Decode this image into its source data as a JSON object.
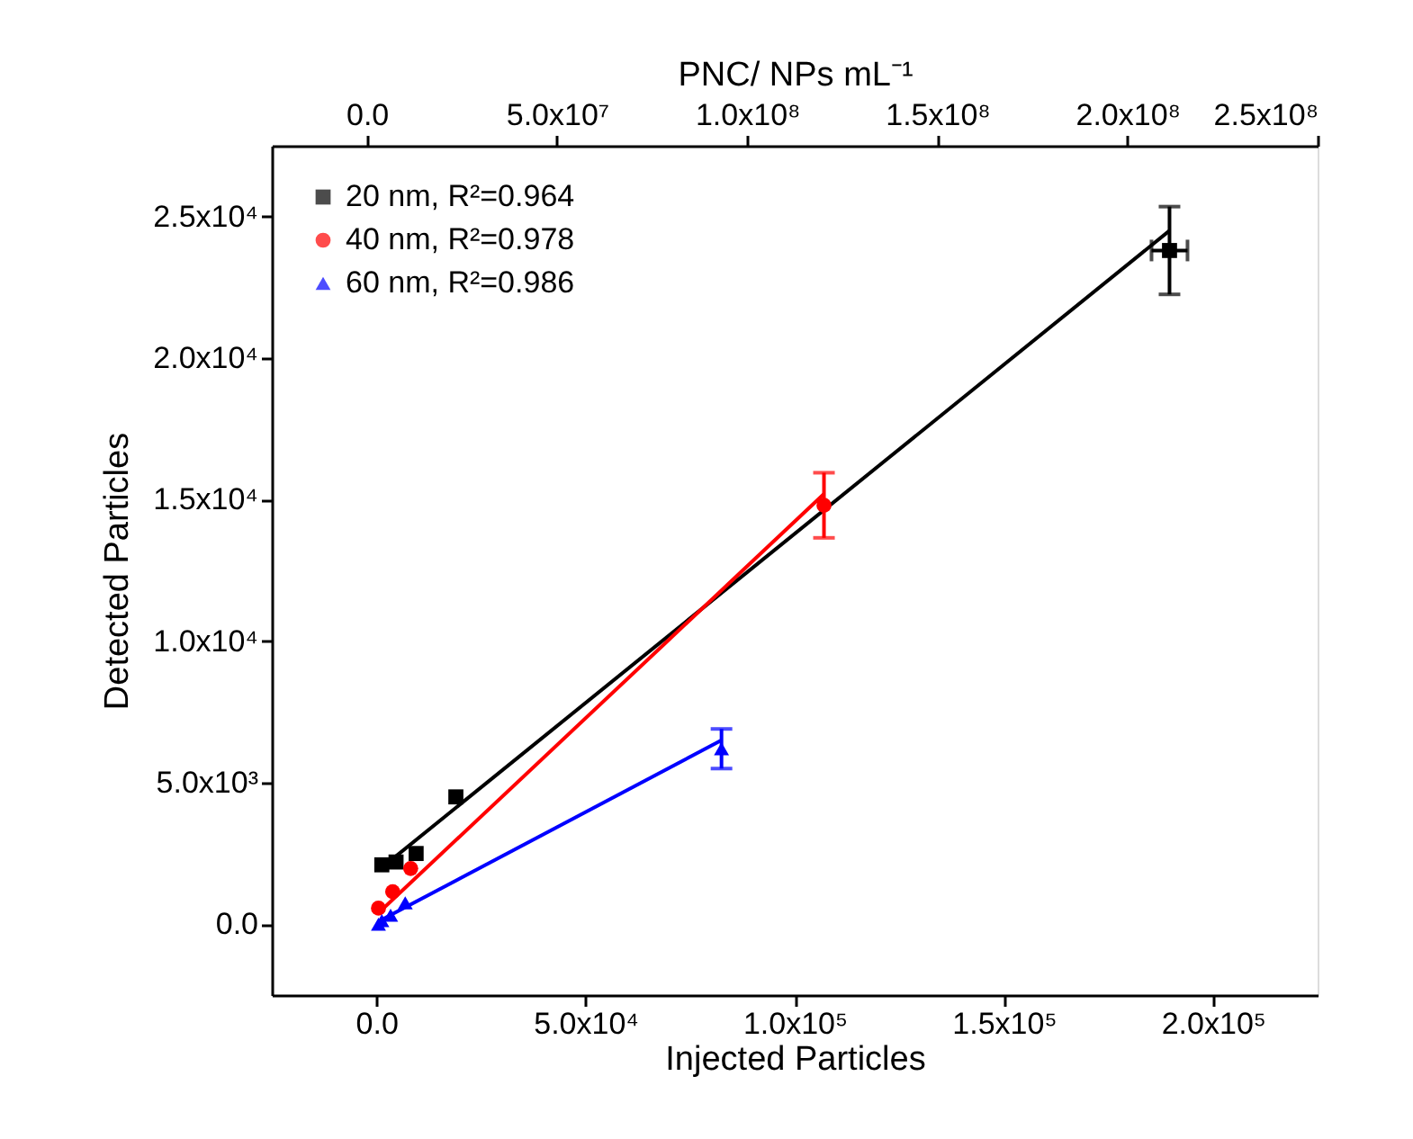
{
  "chart_data": {
    "type": "scatter",
    "xlabel": "Injected Particles",
    "ylabel": "Detected Particles",
    "x2label": "PNC/ NPs mL⁻¹",
    "xlim": [
      -25000,
      225000
    ],
    "xticks": [
      {
        "value": 0,
        "label": "0.0"
      },
      {
        "value": 50000,
        "label": "5.0x10⁴"
      },
      {
        "value": 100000,
        "label": "1.0x10⁵"
      },
      {
        "value": 150000,
        "label": "1.5x10⁵"
      },
      {
        "value": 200000,
        "label": "2.0x10⁵"
      }
    ],
    "ylim": [
      -2500,
      27500
    ],
    "yticks": [
      {
        "value": 0,
        "label": "0.0"
      },
      {
        "value": 5000,
        "label": "5.0x10³"
      },
      {
        "value": 10000,
        "label": "1.0x10⁴"
      },
      {
        "value": 15000,
        "label": "1.5x10⁴"
      },
      {
        "value": 20000,
        "label": "2.0x10⁴"
      },
      {
        "value": 25000,
        "label": "2.5x10⁴"
      }
    ],
    "x2lim": [
      -25000000,
      250000000
    ],
    "x2ticks": [
      {
        "value": 0,
        "label": "0.0"
      },
      {
        "value": 50000000,
        "label": "5.0x10⁷"
      },
      {
        "value": 100000000,
        "label": "1.0x10⁸"
      },
      {
        "value": 150000000,
        "label": "1.5x10⁸"
      },
      {
        "value": 200000000,
        "label": "2.0x10⁸"
      },
      {
        "value": 250000000,
        "label": "2.5x10⁸"
      }
    ],
    "grid": false,
    "legend": "top left",
    "series": [
      {
        "name": "20 nm, R²=0.964",
        "marker": "square",
        "color": "#000000",
        "x": [
          1300,
          4700,
          9500,
          19000,
          189600
        ],
        "values": [
          2100,
          2200,
          2500,
          4500,
          23800
        ],
        "errors": [
          null,
          null,
          null,
          null,
          1550
        ],
        "xerrors": [
          null,
          null,
          null,
          null,
          4300
        ]
      },
      {
        "name": "40 nm, R²=0.978",
        "marker": "circle",
        "color": "#ff0000",
        "x": [
          500,
          3900,
          8200,
          107000
        ],
        "values": [
          570,
          1150,
          1970,
          14800
        ],
        "errors": [
          null,
          null,
          null,
          1150
        ]
      },
      {
        "name": "60 nm, R²=0.986",
        "marker": "triangle",
        "color": "#0000ff",
        "x": [
          500,
          1300,
          3400,
          6900,
          82500
        ],
        "values": [
          0,
          130,
          320,
          760,
          6200
        ],
        "errors": [
          null,
          null,
          null,
          null,
          700
        ]
      },
      {
        "type": "line",
        "line_style": "solid",
        "color": "#000000",
        "x": [
          1300,
          189600
        ],
        "values": [
          2000,
          24500
        ]
      },
      {
        "type": "line",
        "line_style": "solid",
        "color": "#ff0000",
        "x": [
          500,
          107000
        ],
        "values": [
          400,
          15200
        ]
      },
      {
        "type": "line",
        "line_style": "solid",
        "color": "#0000ff",
        "x": [
          500,
          82500
        ],
        "values": [
          100,
          6500
        ]
      }
    ]
  }
}
